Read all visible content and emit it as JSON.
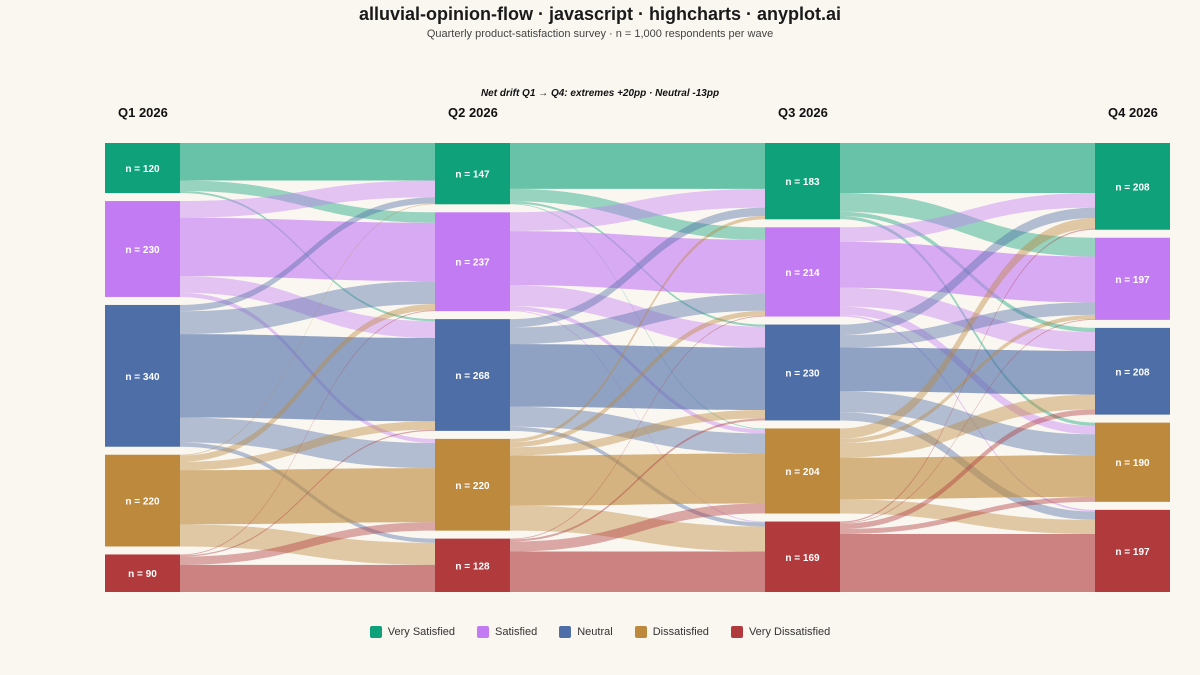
{
  "title": "alluvial-opinion-flow · javascript · highcharts · anyplot.ai",
  "subtitle": "Quarterly product-satisfaction survey · n = 1,000 respondents per wave",
  "annotation": "Net drift Q1 → Q4: extremes +20pp · Neutral -13pp",
  "chart_data": {
    "type": "alluvial",
    "stages": [
      "Q1 2026",
      "Q2 2026",
      "Q3 2026",
      "Q4 2026"
    ],
    "categories": [
      "Very Satisfied",
      "Satisfied",
      "Neutral",
      "Dissatisfied",
      "Very Dissatisfied"
    ],
    "colors": {
      "Very Satisfied": "#0fa179",
      "Satisfied": "#c37bf3",
      "Neutral": "#4e6ea8",
      "Dissatisfied": "#bd893c",
      "Very Dissatisfied": "#b03a3c"
    },
    "totals": [
      [
        120,
        230,
        340,
        220,
        90
      ],
      [
        147,
        237,
        268,
        220,
        128
      ],
      [
        183,
        214,
        230,
        204,
        169
      ],
      [
        208,
        197,
        208,
        190,
        197
      ]
    ],
    "node_label_prefix": "n = ",
    "flows": [
      [
        [
          90,
          25,
          5,
          0,
          0
        ],
        [
          40,
          140,
          40,
          10,
          0
        ],
        [
          15,
          55,
          200,
          60,
          10
        ],
        [
          2,
          15,
          20,
          130,
          53
        ],
        [
          0,
          2,
          3,
          20,
          65
        ]
      ],
      [
        [
          110,
          30,
          5,
          2,
          0
        ],
        [
          45,
          130,
          50,
          10,
          2
        ],
        [
          20,
          40,
          150,
          48,
          10
        ],
        [
          8,
          12,
          20,
          120,
          60
        ],
        [
          0,
          2,
          5,
          24,
          97
        ]
      ],
      [
        [
          120,
          45,
          10,
          8,
          0
        ],
        [
          35,
          110,
          45,
          20,
          4
        ],
        [
          25,
          30,
          105,
          50,
          20
        ],
        [
          25,
          10,
          35,
          100,
          34
        ],
        [
          3,
          2,
          13,
          12,
          139
        ]
      ]
    ]
  },
  "legend": [
    "Very Satisfied",
    "Satisfied",
    "Neutral",
    "Dissatisfied",
    "Very Dissatisfied"
  ]
}
